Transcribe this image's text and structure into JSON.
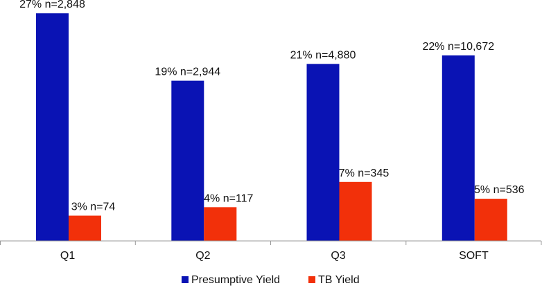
{
  "chart_data": {
    "type": "bar",
    "categories": [
      "Q1",
      "Q2",
      "Q3",
      "SOFT"
    ],
    "series": [
      {
        "name": "Presumptive Yield",
        "color": "#0A13B4",
        "values": [
          27,
          19,
          21,
          22
        ],
        "labels": [
          "27% n=2,848",
          "19% n=2,944",
          "21% n=4,880",
          "22% n=10,672"
        ]
      },
      {
        "name": "TB Yield",
        "color": "#F2300A",
        "values": [
          3,
          4,
          7,
          5
        ],
        "labels": [
          "3% n=74",
          "4% n=117",
          "7% n=345",
          "5% n=536"
        ]
      }
    ],
    "ylim": [
      0,
      28
    ],
    "grid": false,
    "legend_position": "bottom",
    "title": "",
    "xlabel": "",
    "ylabel": ""
  }
}
